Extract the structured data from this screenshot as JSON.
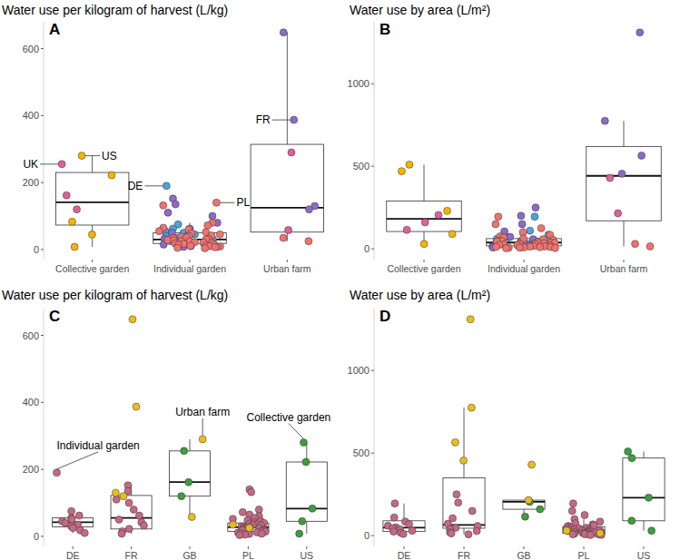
{
  "chart_data": [
    {
      "type": "box",
      "label": "A",
      "title": "Water use per kilogram of harvest (L/kg)",
      "categories": [
        "Collective garden",
        "Individual garden",
        "Urban farm"
      ],
      "ylim": [
        -30,
        680
      ],
      "yticks": [
        0,
        200,
        400,
        600
      ],
      "grid": false,
      "groups": [
        {
          "whisker_low": 8,
          "q1": 73,
          "median": 141,
          "q3": 230,
          "whisker_high": 280,
          "points": [
            {
              "color": "#E0609E",
              "values": [
                255,
                162,
                120
              ]
            },
            {
              "color": "#F5B400",
              "values": [
                280,
                222,
                83,
                45,
                8
              ]
            }
          ]
        },
        {
          "whisker_low": 4,
          "q1": 18,
          "median": 30,
          "q3": 50,
          "whisker_high": 80,
          "points": [
            {
              "color": "#4DA3DA",
              "values": [
                190,
                75,
                62,
                55,
                50,
                45,
                40,
                35,
                30,
                25,
                18,
                10
              ]
            },
            {
              "color": "#8C6BC8",
              "values": [
                152,
                135,
                110,
                100,
                80,
                62,
                50,
                42,
                32,
                22,
                15,
                8
              ]
            },
            {
              "color": "#F0736F",
              "values": [
                140,
                132,
                80,
                72,
                65,
                60,
                55,
                52,
                48,
                45,
                42,
                40,
                38,
                36,
                34,
                32,
                30,
                28,
                27,
                25,
                24,
                22,
                21,
                20,
                18,
                17,
                15,
                14,
                12,
                11,
                10,
                9,
                8,
                7,
                5,
                4
              ]
            }
          ]
        },
        {
          "whisker_low": 25,
          "q1": 52,
          "median": 125,
          "q3": 314,
          "whisker_high": 648,
          "points": [
            {
              "color": "#8C6BC8",
              "values": [
                648,
                387,
                130,
                120
              ]
            },
            {
              "color": "#E0609E",
              "values": [
                290,
                58
              ]
            },
            {
              "color": "#F0736F",
              "values": [
                35,
                25
              ]
            }
          ]
        }
      ],
      "annotations": [
        {
          "text": "UK",
          "category": "Collective garden",
          "value": 255
        },
        {
          "text": "US",
          "category": "Collective garden",
          "value": 280
        },
        {
          "text": "DE",
          "category": "Individual garden",
          "value": 190
        },
        {
          "text": "PL",
          "category": "Individual garden",
          "value": 140
        },
        {
          "text": "FR",
          "category": "Urban farm",
          "value": 387
        }
      ]
    },
    {
      "type": "box",
      "label": "B",
      "title": "Water use by area (L/m²)",
      "categories": [
        "Collective garden",
        "Individual garden",
        "Urban farm"
      ],
      "ylim": [
        -65,
        1375
      ],
      "yticks": [
        0,
        500,
        1000
      ],
      "grid": false,
      "groups": [
        {
          "whisker_low": 30,
          "q1": 105,
          "median": 182,
          "q3": 290,
          "whisker_high": 510,
          "points": [
            {
              "color": "#E0609E",
              "values": [
                205,
                160,
                115
              ]
            },
            {
              "color": "#F5B400",
              "values": [
                510,
                470,
                230,
                90,
                30
              ]
            }
          ]
        },
        {
          "whisker_low": 4,
          "q1": 18,
          "median": 38,
          "q3": 62,
          "whisker_high": 125,
          "points": [
            {
              "color": "#4DA3DA",
              "values": [
                195,
                110,
                85,
                70,
                60,
                50,
                45,
                38,
                30,
                25,
                18,
                10
              ]
            },
            {
              "color": "#8C6BC8",
              "values": [
                250,
                200,
                150,
                105,
                72,
                58,
                48,
                38,
                28,
                20,
                14,
                8
              ]
            },
            {
              "color": "#F0736F",
              "values": [
                195,
                150,
                125,
                100,
                85,
                75,
                68,
                62,
                58,
                54,
                50,
                47,
                44,
                41,
                38,
                36,
                34,
                32,
                30,
                28,
                26,
                24,
                22,
                20,
                18,
                17,
                15,
                14,
                12,
                11,
                10,
                9,
                8,
                7,
                5,
                4
              ]
            }
          ]
        },
        {
          "whisker_low": 15,
          "q1": 170,
          "median": 442,
          "q3": 620,
          "whisker_high": 775,
          "points": [
            {
              "color": "#8C6BC8",
              "values": [
                1310,
                775,
                565,
                455
              ]
            },
            {
              "color": "#E0609E",
              "values": [
                430,
                215
              ]
            },
            {
              "color": "#F0736F",
              "values": [
                30,
                15
              ]
            }
          ]
        }
      ],
      "annotations": []
    },
    {
      "type": "box",
      "label": "C",
      "title": "Water use per kilogram of harvest (L/kg)",
      "categories": [
        "DE",
        "FR",
        "GB",
        "PL",
        "US"
      ],
      "ylim": [
        -30,
        680
      ],
      "yticks": [
        0,
        200,
        400,
        600
      ],
      "grid": false,
      "groups": [
        {
          "whisker_low": 10,
          "q1": 28,
          "median": 42,
          "q3": 55,
          "whisker_high": 75,
          "points": [
            {
              "color": "#C46A83",
              "values": [
                190,
                75,
                62,
                55,
                50,
                45,
                40,
                35,
                30,
                25,
                18,
                10
              ]
            }
          ]
        },
        {
          "whisker_low": 8,
          "q1": 22,
          "median": 55,
          "q3": 122,
          "whisker_high": 152,
          "points": [
            {
              "color": "#C46A83",
              "values": [
                152,
                135,
                110,
                100,
                80,
                62,
                50,
                42,
                32,
                22,
                15,
                8
              ]
            },
            {
              "color": "#E8BE1E",
              "values": [
                648,
                387,
                130,
                120
              ]
            }
          ]
        },
        {
          "whisker_low": 58,
          "q1": 120,
          "median": 162,
          "q3": 255,
          "whisker_high": 290,
          "points": [
            {
              "color": "#3C9E3C",
              "values": [
                255,
                162,
                120
              ]
            },
            {
              "color": "#E8BE1E",
              "values": [
                290,
                58
              ]
            }
          ]
        },
        {
          "whisker_low": 4,
          "q1": 15,
          "median": 27,
          "q3": 40,
          "whisker_high": 72,
          "points": [
            {
              "color": "#C46A83",
              "values": [
                140,
                132,
                80,
                72,
                65,
                60,
                55,
                52,
                48,
                45,
                42,
                40,
                38,
                36,
                34,
                32,
                30,
                28,
                27,
                25,
                24,
                22,
                21,
                20,
                18,
                17,
                15,
                14,
                12,
                11,
                10,
                9,
                8,
                7,
                5,
                4
              ]
            },
            {
              "color": "#E8BE1E",
              "values": [
                35,
                25
              ]
            }
          ]
        },
        {
          "whisker_low": 8,
          "q1": 45,
          "median": 83,
          "q3": 222,
          "whisker_high": 280,
          "points": [
            {
              "color": "#3C9E3C",
              "values": [
                280,
                222,
                83,
                45,
                8
              ]
            }
          ]
        }
      ],
      "annotations": [
        {
          "text": "Individual garden",
          "category": "DE",
          "value": 190
        },
        {
          "text": "Urban farm",
          "category": "GB",
          "value": 290
        },
        {
          "text": "Collective garden",
          "category": "US",
          "value": 280
        }
      ]
    },
    {
      "type": "box",
      "label": "D",
      "title": "Water use by area (L/m²)",
      "categories": [
        "DE",
        "FR",
        "GB",
        "PL",
        "US"
      ],
      "ylim": [
        -65,
        1375
      ],
      "yticks": [
        0,
        500,
        1000
      ],
      "grid": false,
      "groups": [
        {
          "whisker_low": 10,
          "q1": 25,
          "median": 48,
          "q3": 90,
          "whisker_high": 195,
          "points": [
            {
              "color": "#C46A83",
              "values": [
                195,
                110,
                85,
                70,
                60,
                50,
                45,
                38,
                30,
                25,
                18,
                10
              ]
            }
          ]
        },
        {
          "whisker_low": 8,
          "q1": 45,
          "median": 65,
          "q3": 350,
          "whisker_high": 775,
          "points": [
            {
              "color": "#C46A83",
              "values": [
                250,
                200,
                150,
                105,
                72,
                58,
                48,
                38,
                28,
                20,
                14,
                8
              ]
            },
            {
              "color": "#E8BE1E",
              "values": [
                1310,
                775,
                565,
                455
              ]
            }
          ]
        },
        {
          "whisker_low": 115,
          "q1": 160,
          "median": 205,
          "q3": 215,
          "whisker_high": 215,
          "points": [
            {
              "color": "#3C9E3C",
              "values": [
                205,
                160,
                115
              ]
            },
            {
              "color": "#E8BE1E",
              "values": [
                430,
                215
              ]
            }
          ]
        },
        {
          "whisker_low": 4,
          "q1": 14,
          "median": 30,
          "q3": 55,
          "whisker_high": 100,
          "points": [
            {
              "color": "#C46A83",
              "values": [
                195,
                150,
                125,
                100,
                85,
                75,
                68,
                62,
                58,
                54,
                50,
                47,
                44,
                41,
                38,
                36,
                34,
                32,
                30,
                28,
                26,
                24,
                22,
                20,
                18,
                17,
                15,
                14,
                12,
                11,
                10,
                9,
                8,
                7,
                5,
                4
              ]
            },
            {
              "color": "#E8BE1E",
              "values": [
                30,
                15
              ]
            }
          ]
        },
        {
          "whisker_low": 30,
          "q1": 90,
          "median": 230,
          "q3": 470,
          "whisker_high": 510,
          "points": [
            {
              "color": "#3C9E3C",
              "values": [
                510,
                470,
                230,
                90,
                30
              ]
            }
          ]
        }
      ],
      "annotations": []
    }
  ]
}
